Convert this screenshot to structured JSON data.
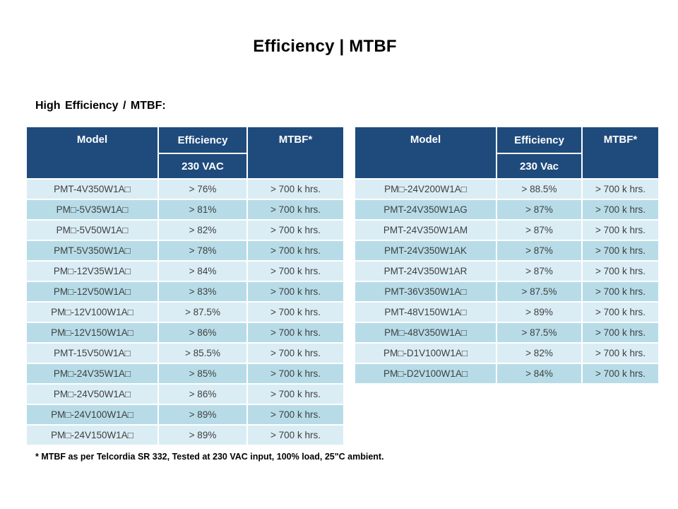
{
  "page": {
    "title": "Efficiency | MTBF",
    "subtitle": "High Efficiency / MTBF:",
    "footnote": "* MTBF as per Telcordia SR 332, Tested at 230 VAC input, 100% load, 25\"C ambient."
  },
  "colors": {
    "header_bg": "#1F4B7C",
    "header_text": "#FFFFFF",
    "row_light": "#DAEDF4",
    "row_medium": "#B7DCE8",
    "cell_text": "#404040"
  },
  "tables": [
    {
      "header": {
        "model": "Model",
        "efficiency": "Efficiency",
        "mtbf": "MTBF*",
        "subheader": "230 VAC"
      },
      "rows": [
        [
          "PMT-4V350W1A□",
          "> 76%",
          "> 700 k hrs."
        ],
        [
          "PM□-5V35W1A□",
          "> 81%",
          "> 700 k hrs."
        ],
        [
          "PM□-5V50W1A□",
          "> 82%",
          "> 700 k hrs."
        ],
        [
          "PMT-5V350W1A□",
          "> 78%",
          "> 700 k hrs."
        ],
        [
          "PM□-12V35W1A□",
          "> 84%",
          "> 700 k hrs."
        ],
        [
          "PM□-12V50W1A□",
          "> 83%",
          "> 700 k hrs."
        ],
        [
          "PM□-12V100W1A□",
          "> 87.5%",
          "> 700 k hrs."
        ],
        [
          "PM□-12V150W1A□",
          "> 86%",
          "> 700 k hrs."
        ],
        [
          "PMT-15V50W1A□",
          "> 85.5%",
          "> 700 k hrs."
        ],
        [
          "PM□-24V35W1A□",
          "> 85%",
          "> 700 k hrs."
        ],
        [
          "PM□-24V50W1A□",
          "> 86%",
          "> 700 k hrs."
        ],
        [
          "PM□-24V100W1A□",
          "> 89%",
          "> 700 k hrs."
        ],
        [
          "PM□-24V150W1A□",
          "> 89%",
          "> 700 k hrs."
        ]
      ]
    },
    {
      "header": {
        "model": "Model",
        "efficiency": "Efficiency",
        "mtbf": "MTBF*",
        "subheader": "230 Vac"
      },
      "rows": [
        [
          "PM□-24V200W1A□",
          "> 88.5%",
          "> 700 k hrs."
        ],
        [
          "PMT-24V350W1AG",
          "> 87%",
          "> 700 k hrs."
        ],
        [
          "PMT-24V350W1AM",
          "> 87%",
          "> 700 k hrs."
        ],
        [
          "PMT-24V350W1AK",
          "> 87%",
          "> 700 k hrs."
        ],
        [
          "PMT-24V350W1AR",
          "> 87%",
          "> 700 k hrs."
        ],
        [
          "PMT-36V350W1A□",
          "> 87.5%",
          "> 700 k hrs."
        ],
        [
          "PMT-48V150W1A□",
          "> 89%",
          "> 700 k hrs."
        ],
        [
          "PM□-48V350W1A□",
          "> 87.5%",
          "> 700 k hrs."
        ],
        [
          "PM□-D1V100W1A□",
          "> 82%",
          "> 700 k hrs."
        ],
        [
          "PM□-D2V100W1A□",
          "> 84%",
          "> 700 k hrs."
        ]
      ]
    }
  ]
}
